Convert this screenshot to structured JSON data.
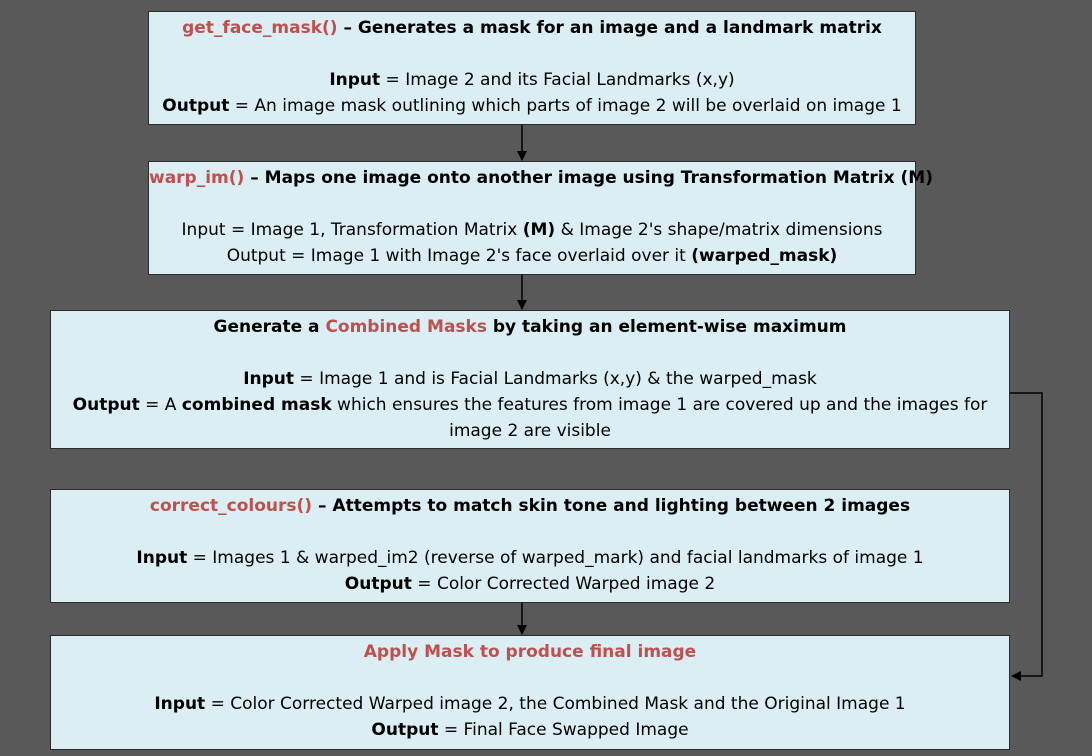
{
  "steps": [
    {
      "heading_red": "get_face_mask()",
      "heading_rest": " – Generates a mask for an image and a landmark matrix",
      "input_label": "Input",
      "input_text": " = Image 2 and its Facial Landmarks (x,y)",
      "output_label": "Output",
      "output_text": " = An image mask outlining which parts of image 2 will be overlaid on image 1"
    },
    {
      "heading_red": "warp_im()",
      "heading_rest": " – Maps one image onto another image using Transformation Matrix (M)",
      "input_pre": "Input = Image 1, Transformation Matrix ",
      "input_bold": "(M)",
      "input_post": " & Image 2's shape/matrix dimensions",
      "output_pre": "Output = Image 1 with Image 2's face overlaid over it ",
      "output_bold": "(warped_mask)"
    },
    {
      "heading_pre": "Generate a ",
      "heading_red": "Combined Masks",
      "heading_post": " by taking an element-wise maximum",
      "input_label": "Input",
      "input_text": " = Image 1 and is Facial Landmarks (x,y) & the warped_mask",
      "output_label": "Output",
      "output_mid": " = A ",
      "output_bold": "combined mask",
      "output_text": " which ensures the features from image 1 are covered up and the images for",
      "output_text2": "image 2 are visible"
    },
    {
      "heading_red": "correct_colours()",
      "heading_rest": " – Attempts to match skin tone and lighting between 2 images",
      "input_label": "Input",
      "input_text": " = Images 1 & warped_im2 (reverse of warped_mark) and facial landmarks of image 1",
      "output_label": "Output",
      "output_text": " = Color Corrected Warped image 2"
    },
    {
      "heading_red": "Apply Mask to produce final image",
      "input_label": "Input",
      "input_text": " = Color Corrected Warped image 2, the Combined Mask and the Original Image 1",
      "output_label": "Output",
      "output_text": " = Final Face Swapped Image"
    }
  ],
  "colors": {
    "background": "#595959",
    "box_fill": "#daeef3",
    "highlight": "#c0504d",
    "border": "#2b2b2b"
  }
}
